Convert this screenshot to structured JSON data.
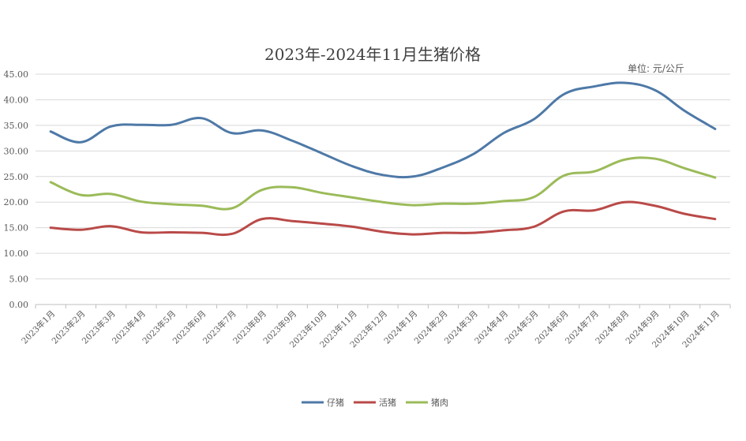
{
  "chart_data": {
    "type": "line",
    "title": "2023年-2024年11月生猪价格",
    "unit_label": "单位: 元/公斤",
    "xlabel": "",
    "ylabel": "",
    "ylim": [
      0,
      45
    ],
    "ytick_step": 5,
    "grid": true,
    "legend_position": "bottom",
    "categories": [
      "2023年1月",
      "2023年2月",
      "2023年3月",
      "2023年4月",
      "2023年5月",
      "2023年6月",
      "2023年7月",
      "2023年8月",
      "2023年9月",
      "2023年10月",
      "2023年11月",
      "2023年12月",
      "2024年1月",
      "2024年2月",
      "2024年3月",
      "2024年4月",
      "2024年5月",
      "2024年6月",
      "2024年7月",
      "2024年8月",
      "2024年9月",
      "2024年10月",
      "2024年11月"
    ],
    "series": [
      {
        "name": "仔猪",
        "color": "#4e79a7",
        "values": [
          33.8,
          31.7,
          34.8,
          35.1,
          35.1,
          36.4,
          33.5,
          34.0,
          32.0,
          29.5,
          27.0,
          25.3,
          25.0,
          26.8,
          29.4,
          33.5,
          36.2,
          41.1,
          42.6,
          43.3,
          41.9,
          37.8,
          34.3
        ]
      },
      {
        "name": "活猪",
        "color": "#b94a48",
        "values": [
          15.0,
          14.6,
          15.3,
          14.1,
          14.1,
          14.0,
          13.8,
          16.7,
          16.3,
          15.8,
          15.2,
          14.2,
          13.7,
          14.0,
          14.0,
          14.5,
          15.2,
          18.2,
          18.4,
          20.0,
          19.3,
          17.7,
          16.7
        ]
      },
      {
        "name": "猪肉",
        "color": "#9bbb59",
        "values": [
          23.9,
          21.4,
          21.6,
          20.1,
          19.6,
          19.3,
          18.8,
          22.4,
          22.9,
          21.8,
          20.9,
          20.0,
          19.4,
          19.7,
          19.7,
          20.2,
          21.0,
          25.2,
          26.0,
          28.3,
          28.5,
          26.6,
          24.8
        ]
      }
    ]
  }
}
